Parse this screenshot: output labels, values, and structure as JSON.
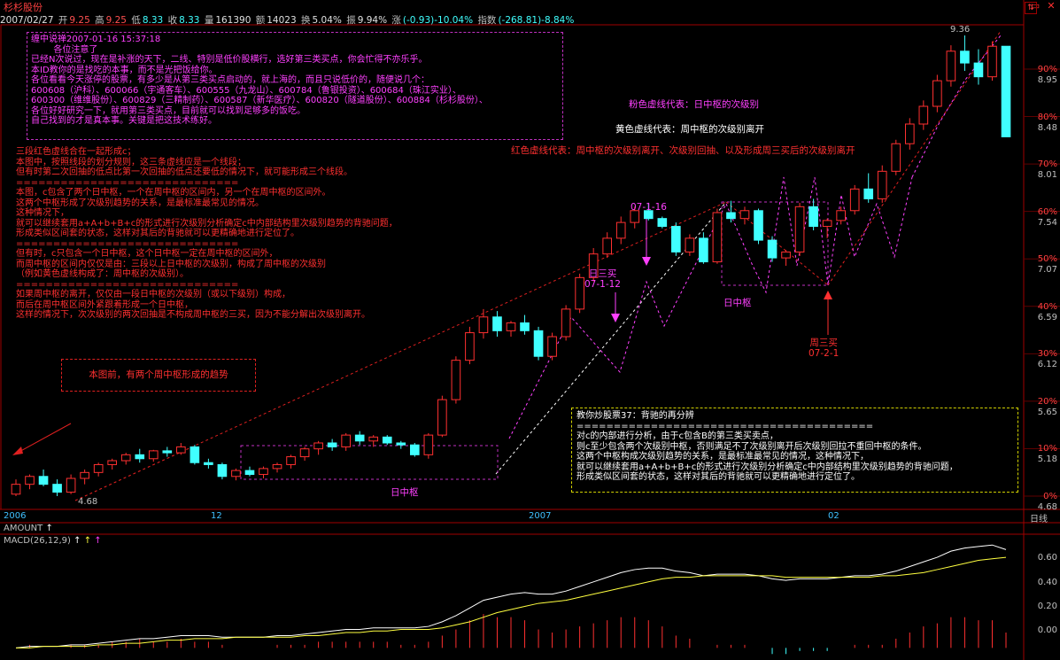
{
  "window": {
    "title": "杉杉股份",
    "min_icon": "minimize-icon",
    "close_icon": "close-icon"
  },
  "quote": {
    "date": "2007/02/27",
    "open_label": "开",
    "open": "9.25",
    "high_label": "高",
    "high": "9.25",
    "low_label": "低",
    "low": "8.33",
    "close_label": "收",
    "close": "8.33",
    "volume_label": "量",
    "volume": "161390",
    "amount_label": "额",
    "amount": "14023",
    "turnover_label": "换",
    "turnover": "5.04%",
    "amplitude_label": "振",
    "amplitude": "9.94%",
    "change_label": "涨",
    "change": "(-0.93)-10.04%",
    "index_label": "指数",
    "index": "(-268.81)-8.84%"
  },
  "price_axis": {
    "pct_labels": [
      "90%",
      "80%",
      "70%",
      "60%",
      "50%",
      "40%",
      "30%",
      "20%",
      "10%",
      "0%"
    ],
    "price_labels": [
      "8.95",
      "8.48",
      "8.01",
      "7.54",
      "7.07",
      "6.59",
      "6.12",
      "5.65",
      "5.18",
      "4.68"
    ],
    "top_price": "9.36",
    "bottom_price": "4.68"
  },
  "x_axis": {
    "labels": [
      "2006",
      "12",
      "2007",
      "02"
    ],
    "period_label": "日线"
  },
  "indicator": {
    "amount_label": "AMOUNT",
    "macd_label": "MACD(26,12,9)",
    "arrows": [
      "↑",
      "↑",
      "↑"
    ],
    "axis_labels": [
      "0.60",
      "0.40",
      "0.20",
      "0.00"
    ]
  },
  "notes": {
    "top_box": "缠中说禅2007-01-16 15:37:18\n        各位注意了\n已经N次说过，现在是补涨的天下，二线、特别是低价股横行，选好第三类买点，你会忙得不亦乐乎。\n本ID教你的是找吃的本事，而不是光把饭给你。\n各位看看今天涨停的股票，有多少是从第三类买点启动的，就上海的，而且只说低价的，随便说几个：\n600608（沪科）、600066（宇通客车）、600555（九龙山）、600784（鲁银投资）、600684（珠江实业）、\n600300（维维股份）、600829（三精制药）、600587（新华医疗）、600820（隧道股份）、600884（杉杉股份）、\n各位好好研究一下，就用第三类买点，目前就可以找到足够多的饭吃。\n自己找到的才是真本事。关键是把这技术练好。",
    "left_text": "三段红色虚线合在一起形成c；\n本图中，按照线段的划分规则，这三条虚线应是一个线段；\n但有时第二次回抽的低点比第一次回抽的低点还要低的情况下，就可能形成三个线段。\n==============================\n本图，c包含了两个日中枢，一个在周中枢的区间内，另一个在周中枢的区间外。\n这两个中枢形成了次级别趋势的关系，是最标准最常见的情况。\n这种情况下，\n就可以继续套用a+A+b+B+c的形式进行次级别分析确定c中内部结构里次级别趋势的背驰问题，\n形成类似区间套的状态，这样对其后的背驰就可以更精确地进行定位了。\n==============================\n但有时，c只包含一个日中枢，这个日中枢一定在周中枢的区间外，\n而周中枢的区间内仅仅是由：三段以上日中枢的次级别，构成了周中枢的次级别\n（例如黄色虚线构成了：周中枢的次级别）。\n==============================\n如果周中枢的离开，仅仅由一段日中枢的次级别（或以下级别）构成，\n而后在周中枢区间外紧跟着形成一个日中枢，\n这样的情况下，次次级别的两次回抽是不构成周中枢的三买，因为不能分解出次级别离开。",
    "trend_box": "本图前，有两个周中枢形成的趋势",
    "legend_pink": "粉色虚线代表：日中枢的次级别",
    "legend_yellow": "黄色虚线代表：周中枢的次级别离开",
    "legend_red": "红色虚线代表：周中枢的次级别离开、次级别回抽、以及形成周三买后的次级别离开",
    "label_day_buy": "日三买\n07-1-12",
    "label_0116": "07-1-16",
    "label_day_center_1": "日中枢",
    "label_day_center_2": "日中枢",
    "label_week_buy": "周三买\n07-2-1",
    "label_low": "4.68",
    "label_high": "9.36",
    "lesson_box": "教你炒股票37：背驰的再分辨\n========================================\n对c的内部进行分析，由于c包含B的第三类买卖点，\n则c至少包含两个次级别中枢，否则满足不了次级别离开后次级别回拉不重回中枢的条件。\n这两个中枢构成次级别趋势的关系，是最标准最常见的情况，这种情况下，\n就可以继续套用a+A+b+B+c的形式进行次级别分析确定c中内部结构里次级别趋势的背驰问题，\n形成类似区间套的状态，这样对其后的背驰就可以更精确地进行定位了。"
  },
  "colors": {
    "up": "#ff3030",
    "down": "#40ffff",
    "magenta": "#ff40ff",
    "yellow_line": "#ffffff",
    "bg": "#000000"
  },
  "chart_data": {
    "type": "candlestick",
    "candles": [
      {
        "o": 4.7,
        "h": 4.85,
        "l": 4.68,
        "c": 4.8
      },
      {
        "o": 4.8,
        "h": 4.9,
        "l": 4.75,
        "c": 4.88
      },
      {
        "o": 4.88,
        "h": 4.95,
        "l": 4.78,
        "c": 4.8
      },
      {
        "o": 4.8,
        "h": 4.85,
        "l": 4.68,
        "c": 4.72
      },
      {
        "o": 4.72,
        "h": 4.9,
        "l": 4.7,
        "c": 4.86
      },
      {
        "o": 4.86,
        "h": 4.95,
        "l": 4.8,
        "c": 4.92
      },
      {
        "o": 4.92,
        "h": 5.02,
        "l": 4.88,
        "c": 5.0
      },
      {
        "o": 5.0,
        "h": 5.06,
        "l": 4.95,
        "c": 5.04
      },
      {
        "o": 5.04,
        "h": 5.12,
        "l": 5.0,
        "c": 5.1
      },
      {
        "o": 5.1,
        "h": 5.16,
        "l": 5.02,
        "c": 5.06
      },
      {
        "o": 5.06,
        "h": 5.15,
        "l": 5.03,
        "c": 5.14
      },
      {
        "o": 5.14,
        "h": 5.18,
        "l": 5.08,
        "c": 5.12
      },
      {
        "o": 5.12,
        "h": 5.22,
        "l": 5.1,
        "c": 5.18
      },
      {
        "o": 5.18,
        "h": 5.2,
        "l": 5.0,
        "c": 5.02
      },
      {
        "o": 5.02,
        "h": 5.06,
        "l": 4.96,
        "c": 5.0
      },
      {
        "o": 5.0,
        "h": 5.02,
        "l": 4.85,
        "c": 4.88
      },
      {
        "o": 4.88,
        "h": 4.96,
        "l": 4.84,
        "c": 4.94
      },
      {
        "o": 4.94,
        "h": 4.98,
        "l": 4.88,
        "c": 4.9
      },
      {
        "o": 4.9,
        "h": 4.98,
        "l": 4.86,
        "c": 4.96
      },
      {
        "o": 4.96,
        "h": 5.02,
        "l": 4.92,
        "c": 5.0
      },
      {
        "o": 5.0,
        "h": 5.1,
        "l": 4.96,
        "c": 5.08
      },
      {
        "o": 5.08,
        "h": 5.18,
        "l": 5.04,
        "c": 5.16
      },
      {
        "o": 5.16,
        "h": 5.24,
        "l": 5.1,
        "c": 5.22
      },
      {
        "o": 5.22,
        "h": 5.26,
        "l": 5.14,
        "c": 5.18
      },
      {
        "o": 5.18,
        "h": 5.32,
        "l": 5.14,
        "c": 5.3
      },
      {
        "o": 5.3,
        "h": 5.34,
        "l": 5.2,
        "c": 5.24
      },
      {
        "o": 5.24,
        "h": 5.3,
        "l": 5.18,
        "c": 5.28
      },
      {
        "o": 5.28,
        "h": 5.3,
        "l": 5.2,
        "c": 5.22
      },
      {
        "o": 5.22,
        "h": 5.24,
        "l": 5.16,
        "c": 5.2
      },
      {
        "o": 5.2,
        "h": 5.22,
        "l": 5.08,
        "c": 5.1
      },
      {
        "o": 5.1,
        "h": 5.32,
        "l": 5.06,
        "c": 5.3
      },
      {
        "o": 5.3,
        "h": 5.7,
        "l": 5.28,
        "c": 5.66
      },
      {
        "o": 5.66,
        "h": 6.1,
        "l": 5.62,
        "c": 6.06
      },
      {
        "o": 6.06,
        "h": 6.4,
        "l": 6.02,
        "c": 6.34
      },
      {
        "o": 6.34,
        "h": 6.58,
        "l": 6.28,
        "c": 6.5
      },
      {
        "o": 6.5,
        "h": 6.56,
        "l": 6.3,
        "c": 6.36
      },
      {
        "o": 6.36,
        "h": 6.46,
        "l": 6.3,
        "c": 6.44
      },
      {
        "o": 6.44,
        "h": 6.52,
        "l": 6.32,
        "c": 6.36
      },
      {
        "o": 6.36,
        "h": 6.4,
        "l": 6.06,
        "c": 6.1
      },
      {
        "o": 6.1,
        "h": 6.34,
        "l": 6.06,
        "c": 6.3
      },
      {
        "o": 6.3,
        "h": 6.62,
        "l": 6.26,
        "c": 6.58
      },
      {
        "o": 6.58,
        "h": 6.94,
        "l": 6.54,
        "c": 6.9
      },
      {
        "o": 6.9,
        "h": 7.2,
        "l": 6.86,
        "c": 7.14
      },
      {
        "o": 7.14,
        "h": 7.36,
        "l": 7.1,
        "c": 7.3
      },
      {
        "o": 7.3,
        "h": 7.52,
        "l": 7.24,
        "c": 7.46
      },
      {
        "o": 7.46,
        "h": 7.62,
        "l": 7.4,
        "c": 7.58
      },
      {
        "o": 7.58,
        "h": 7.66,
        "l": 7.48,
        "c": 7.5
      },
      {
        "o": 7.5,
        "h": 7.52,
        "l": 7.4,
        "c": 7.42
      },
      {
        "o": 7.42,
        "h": 7.46,
        "l": 7.12,
        "c": 7.16
      },
      {
        "o": 7.16,
        "h": 7.34,
        "l": 7.12,
        "c": 7.3
      },
      {
        "o": 7.3,
        "h": 7.36,
        "l": 7.04,
        "c": 7.06
      },
      {
        "o": 7.06,
        "h": 7.6,
        "l": 7.04,
        "c": 7.56
      },
      {
        "o": 7.56,
        "h": 7.68,
        "l": 7.46,
        "c": 7.5
      },
      {
        "o": 7.5,
        "h": 7.62,
        "l": 7.44,
        "c": 7.58
      },
      {
        "o": 7.58,
        "h": 7.6,
        "l": 7.24,
        "c": 7.28
      },
      {
        "o": 7.28,
        "h": 7.32,
        "l": 7.06,
        "c": 7.1
      },
      {
        "o": 7.1,
        "h": 7.18,
        "l": 7.02,
        "c": 7.16
      },
      {
        "o": 7.16,
        "h": 7.66,
        "l": 7.12,
        "c": 7.62
      },
      {
        "o": 7.62,
        "h": 7.7,
        "l": 7.38,
        "c": 7.42
      },
      {
        "o": 7.42,
        "h": 7.5,
        "l": 7.3,
        "c": 7.48
      },
      {
        "o": 7.48,
        "h": 7.62,
        "l": 7.44,
        "c": 7.58
      },
      {
        "o": 7.58,
        "h": 7.84,
        "l": 7.54,
        "c": 7.8
      },
      {
        "o": 7.8,
        "h": 7.96,
        "l": 7.66,
        "c": 7.7
      },
      {
        "o": 7.7,
        "h": 8.04,
        "l": 7.66,
        "c": 7.98
      },
      {
        "o": 7.98,
        "h": 8.3,
        "l": 7.94,
        "c": 8.26
      },
      {
        "o": 8.26,
        "h": 8.52,
        "l": 8.2,
        "c": 8.46
      },
      {
        "o": 8.46,
        "h": 8.7,
        "l": 8.4,
        "c": 8.64
      },
      {
        "o": 8.64,
        "h": 8.96,
        "l": 8.58,
        "c": 8.9
      },
      {
        "o": 8.9,
        "h": 9.26,
        "l": 8.84,
        "c": 9.2
      },
      {
        "o": 9.2,
        "h": 9.36,
        "l": 9.0,
        "c": 9.08
      },
      {
        "o": 9.08,
        "h": 9.22,
        "l": 8.86,
        "c": 8.94
      },
      {
        "o": 8.94,
        "h": 9.3,
        "l": 8.9,
        "c": 9.25
      },
      {
        "o": 9.25,
        "h": 9.25,
        "l": 8.33,
        "c": 8.33
      }
    ],
    "macd_dif": [
      0.0,
      0.01,
      0.01,
      0.01,
      0.02,
      0.02,
      0.03,
      0.04,
      0.05,
      0.06,
      0.06,
      0.07,
      0.08,
      0.08,
      0.08,
      0.07,
      0.07,
      0.07,
      0.07,
      0.08,
      0.08,
      0.09,
      0.1,
      0.11,
      0.12,
      0.12,
      0.13,
      0.13,
      0.13,
      0.13,
      0.14,
      0.17,
      0.21,
      0.26,
      0.31,
      0.33,
      0.35,
      0.36,
      0.35,
      0.35,
      0.37,
      0.4,
      0.43,
      0.46,
      0.49,
      0.51,
      0.52,
      0.52,
      0.5,
      0.49,
      0.47,
      0.48,
      0.48,
      0.48,
      0.47,
      0.45,
      0.44,
      0.45,
      0.45,
      0.45,
      0.46,
      0.47,
      0.47,
      0.48,
      0.5,
      0.53,
      0.56,
      0.59,
      0.63,
      0.65,
      0.66,
      0.67,
      0.64
    ],
    "macd_dea": [
      0.0,
      0.0,
      0.01,
      0.01,
      0.01,
      0.01,
      0.02,
      0.02,
      0.03,
      0.03,
      0.04,
      0.05,
      0.05,
      0.06,
      0.06,
      0.06,
      0.07,
      0.07,
      0.07,
      0.07,
      0.07,
      0.08,
      0.08,
      0.09,
      0.1,
      0.1,
      0.11,
      0.11,
      0.12,
      0.12,
      0.12,
      0.13,
      0.15,
      0.17,
      0.2,
      0.23,
      0.25,
      0.27,
      0.29,
      0.3,
      0.31,
      0.33,
      0.35,
      0.37,
      0.39,
      0.41,
      0.43,
      0.45,
      0.46,
      0.46,
      0.47,
      0.47,
      0.47,
      0.47,
      0.47,
      0.47,
      0.46,
      0.46,
      0.46,
      0.46,
      0.46,
      0.46,
      0.46,
      0.47,
      0.47,
      0.48,
      0.49,
      0.51,
      0.53,
      0.55,
      0.57,
      0.58,
      0.59
    ],
    "ylim": [
      4.68,
      9.36
    ],
    "macd_ylim": [
      -0.05,
      0.7
    ]
  }
}
